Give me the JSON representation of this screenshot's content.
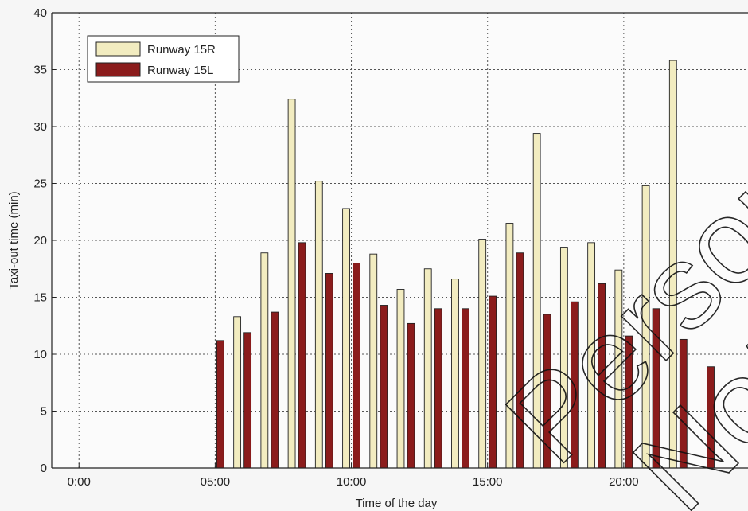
{
  "chart_data": {
    "type": "bar",
    "xlabel": "Time of the day",
    "ylabel": "Taxi-out time (min)",
    "ylim": [
      0,
      40
    ],
    "yticks": [
      0,
      5,
      10,
      15,
      20,
      25,
      30,
      35,
      40
    ],
    "xlim": [
      -1,
      25
    ],
    "xticks": [
      {
        "x": 0,
        "label": "0:00"
      },
      {
        "x": 5,
        "label": "05:00"
      },
      {
        "x": 10,
        "label": "10:00"
      },
      {
        "x": 15,
        "label": "15:00"
      },
      {
        "x": 20,
        "label": "20:00"
      }
    ],
    "grid": true,
    "legend_position": "top-left",
    "x": [
      5,
      6,
      7,
      8,
      9,
      10,
      11,
      12,
      13,
      14,
      15,
      16,
      17,
      18,
      19,
      20,
      21,
      22,
      23
    ],
    "series": [
      {
        "name": "Runway 15R",
        "color": "#f2ecc0",
        "values": [
          0,
          13.3,
          18.9,
          32.4,
          25.2,
          22.8,
          18.8,
          15.7,
          17.5,
          16.6,
          20.1,
          21.5,
          29.4,
          19.4,
          19.8,
          17.4,
          24.8,
          35.8,
          0
        ]
      },
      {
        "name": "Runway 15L",
        "color": "#8b1c1c",
        "values": [
          11.2,
          11.9,
          13.7,
          19.8,
          17.1,
          18.0,
          14.3,
          12.7,
          14.0,
          14.0,
          15.1,
          18.9,
          13.5,
          14.6,
          16.2,
          11.6,
          14.0,
          11.3,
          8.9
        ]
      }
    ]
  },
  "watermark": {
    "lines": [
      "Personal Copy",
      "Not for Reprint"
    ],
    "color": "#111111"
  }
}
